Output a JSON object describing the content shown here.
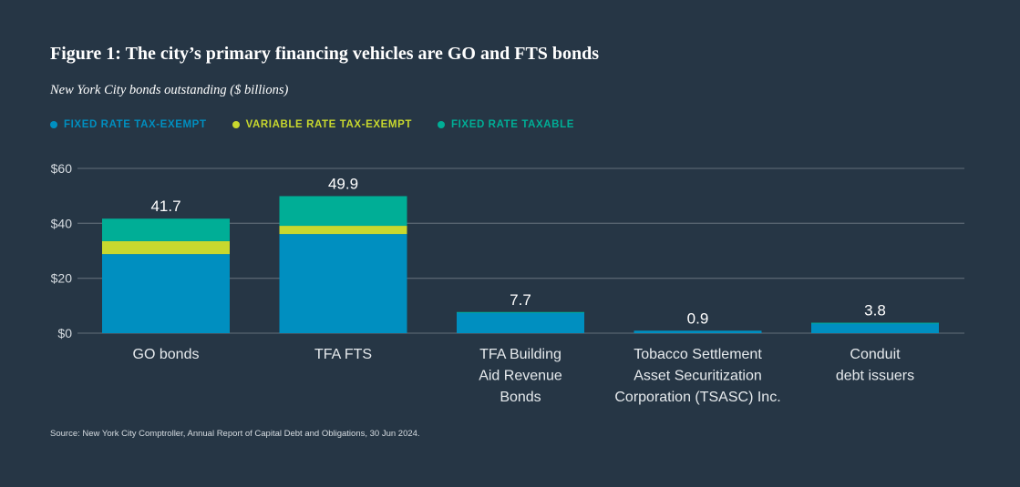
{
  "title": "Figure 1: The city’s primary financing vehicles are GO and FTS bonds",
  "subtitle": "New York City bonds outstanding ($ billions)",
  "source": "Source: New York City Comptroller, Annual Report of Capital Debt and Obligations, 30 Jun 2024.",
  "chart_data": {
    "type": "bar",
    "stacked": true,
    "categories": [
      [
        "GO bonds"
      ],
      [
        "TFA FTS"
      ],
      [
        "TFA Building",
        "Aid Revenue",
        "Bonds"
      ],
      [
        "Tobacco Settlement",
        "Asset Securitization",
        "Corporation (TSASC) Inc."
      ],
      [
        "Conduit",
        "debt issuers"
      ]
    ],
    "series": [
      {
        "name": "FIXED RATE TAX-EXEMPT",
        "color": "#008fc0",
        "values": [
          28.8,
          36.1,
          7.5,
          0.9,
          3.7
        ]
      },
      {
        "name": "VARIABLE RATE TAX-EXEMPT",
        "color": "#c8d82e",
        "values": [
          4.7,
          3.0,
          0,
          0,
          0
        ]
      },
      {
        "name": "FIXED RATE TAXABLE",
        "color": "#00ae96",
        "values": [
          8.2,
          10.8,
          0.2,
          0,
          0.1
        ]
      }
    ],
    "totals": [
      "41.7",
      "49.9",
      "7.7",
      "0.9",
      "3.8"
    ],
    "ylim": [
      0,
      60
    ],
    "yticks": [
      0,
      20,
      40,
      60
    ],
    "ytick_labels": [
      "$0",
      "$20",
      "$40",
      "$60"
    ],
    "grid": true,
    "legend_position": "top-left"
  }
}
